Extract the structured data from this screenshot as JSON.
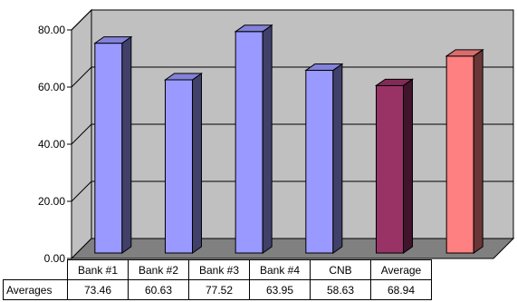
{
  "chart_data": {
    "type": "bar",
    "categories": [
      "Bank #1",
      "Bank #2",
      "Bank #3",
      "Bank #4",
      "CNB",
      "Average"
    ],
    "series": [
      {
        "name": "Averages",
        "values": [
          73.46,
          60.63,
          77.52,
          63.95,
          58.63,
          68.94
        ]
      }
    ],
    "bar_colors": [
      "#9999ff",
      "#9999ff",
      "#9999ff",
      "#9999ff",
      "#993366",
      "#ff8080"
    ],
    "ylim": [
      0,
      80
    ],
    "y_ticks": [
      "0.00",
      "20.00",
      "40.00",
      "60.00",
      "80.00"
    ],
    "grid": true,
    "legend": "none",
    "data_table": {
      "row_label": "Averages",
      "values": [
        "73.46",
        "60.63",
        "77.52",
        "63.95",
        "58.63",
        "68.94"
      ]
    },
    "colors": {
      "wall": "#c0c0c0",
      "floor": "#808080"
    }
  }
}
